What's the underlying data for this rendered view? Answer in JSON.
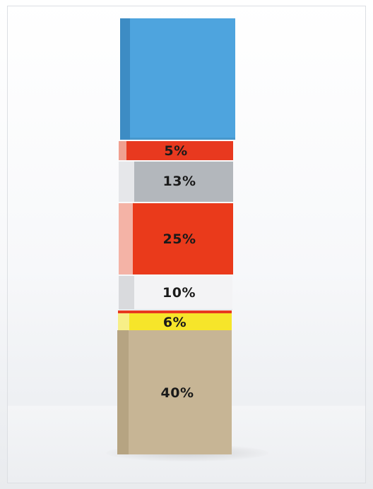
{
  "photo": {
    "subject": "stacked-block-tower"
  },
  "blocks": [
    {
      "id": "blue",
      "color": "#4ea4de",
      "side_color": "#3d8cc4",
      "label": ""
    },
    {
      "id": "red-thin",
      "color": "#e8391f",
      "side_color": "#f0a090",
      "label": "5%"
    },
    {
      "id": "grey",
      "color": "#b3b7bc",
      "side_color": "#e6e7ea",
      "label": "13%"
    },
    {
      "id": "red-large",
      "color": "#ea3a1b",
      "side_color": "#f4b3a6",
      "label": "25%"
    },
    {
      "id": "white",
      "color": "#f3f3f5",
      "side_color": "#d9dadd",
      "label": "10%"
    },
    {
      "id": "yellow",
      "color": "#f6e52a",
      "side_color": "#f7ef88",
      "label": "6%"
    },
    {
      "id": "tan",
      "color": "#c7b595",
      "side_color": "#b6a482",
      "label": "40%"
    }
  ]
}
